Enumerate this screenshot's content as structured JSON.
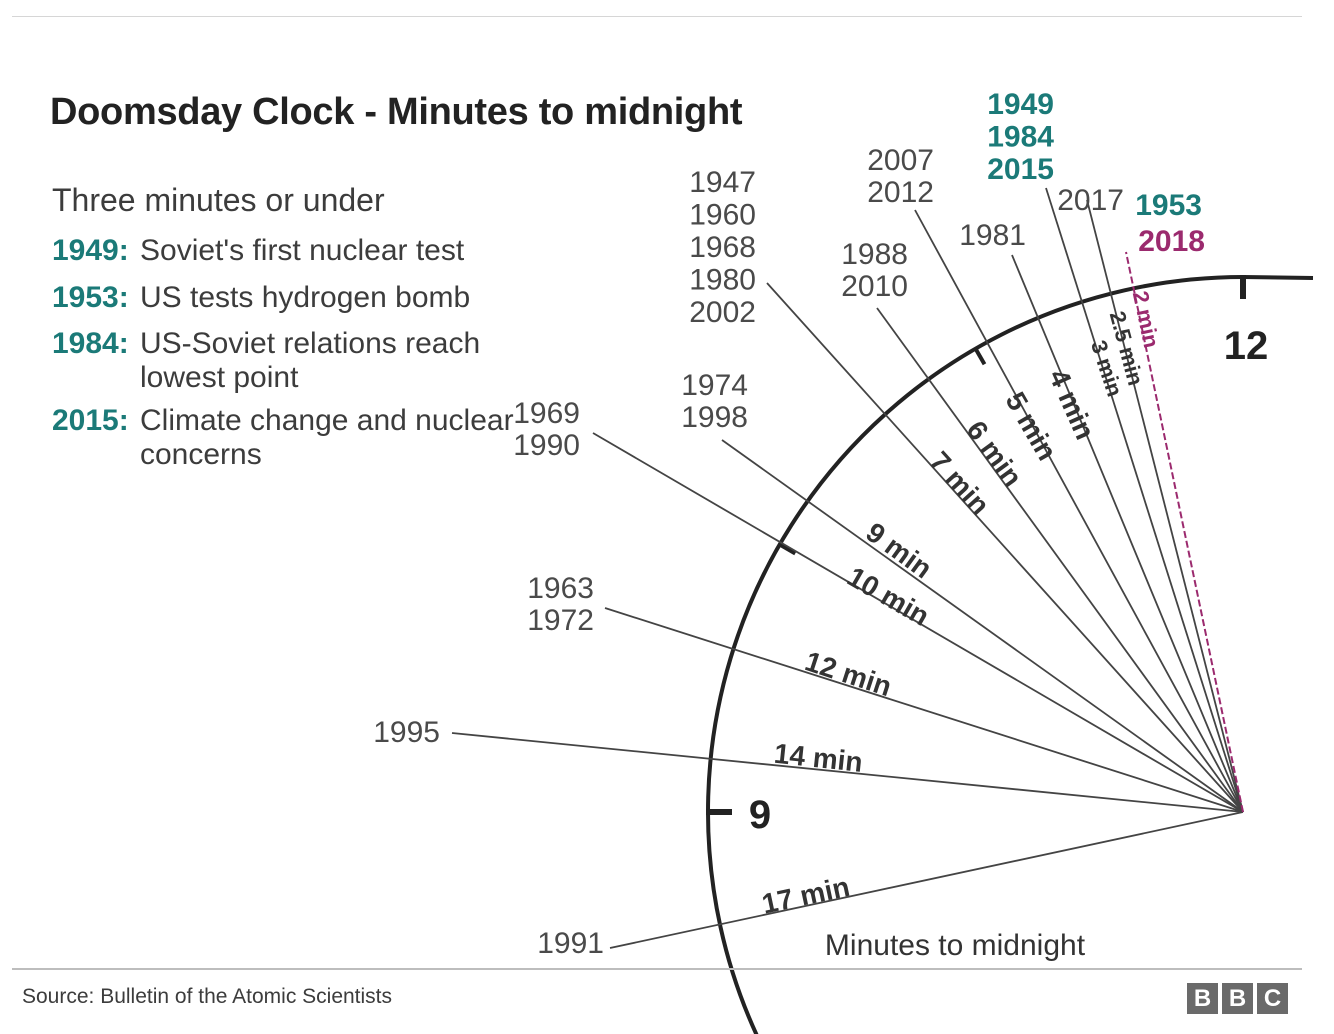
{
  "title": "Doomsday Clock - Minutes to midnight",
  "legend": {
    "heading": "Three minutes or under",
    "items": [
      {
        "year": "1949:",
        "text": "Soviet's first nuclear test"
      },
      {
        "year": "1953:",
        "text": "US tests hydrogen bomb"
      },
      {
        "year": "1984:",
        "text": "US-Soviet relations reach lowest point"
      },
      {
        "year": "2015:",
        "text": "Climate change and nuclear concerns"
      }
    ]
  },
  "source": "Source: Bulletin of the Atomic Scientists",
  "logo": {
    "letters": [
      "B",
      "B",
      "C"
    ]
  },
  "colors": {
    "teal": "#1b7a78",
    "magenta": "#9b2a6e",
    "grey_text": "#4a4a4a",
    "line": "#444444"
  },
  "chart_data": {
    "type": "radial-clock",
    "xlabel": "Minutes to midnight",
    "clock_labels": [
      "12",
      "9"
    ],
    "hands": [
      {
        "minutes": 17,
        "label": "17 min",
        "years": [
          "1991"
        ],
        "highlight": "none"
      },
      {
        "minutes": 14,
        "label": "14 min",
        "years": [
          "1995"
        ],
        "highlight": "none"
      },
      {
        "minutes": 12,
        "label": "12 min",
        "years": [
          "1963",
          "1972"
        ],
        "highlight": "none"
      },
      {
        "minutes": 10,
        "label": "10 min",
        "years": [
          "1969",
          "1990"
        ],
        "highlight": "none"
      },
      {
        "minutes": 9,
        "label": "9 min",
        "years": [
          "1974",
          "1998"
        ],
        "highlight": "none"
      },
      {
        "minutes": 7,
        "label": "7 min",
        "years": [
          "1947",
          "1960",
          "1968",
          "1980",
          "2002"
        ],
        "highlight": "none"
      },
      {
        "minutes": 6,
        "label": "6 min",
        "years": [
          "1988",
          "2010"
        ],
        "highlight": "none"
      },
      {
        "minutes": 5,
        "label": "5 min",
        "years": [
          "2007",
          "2012"
        ],
        "highlight": "none"
      },
      {
        "minutes": 4,
        "label": "4 min",
        "years": [
          "1981"
        ],
        "highlight": "none"
      },
      {
        "minutes": 3,
        "label": "3 min",
        "years": [
          "1949",
          "1984",
          "2015"
        ],
        "highlight": "teal"
      },
      {
        "minutes": 2.5,
        "label": "2.5 min",
        "years": [
          "2017"
        ],
        "highlight": "none"
      },
      {
        "minutes": 2,
        "label": "2 min",
        "years": [
          "1953"
        ],
        "highlight": "teal"
      },
      {
        "minutes": 2,
        "label": "2 min",
        "years": [
          "2018"
        ],
        "highlight": "magenta"
      }
    ]
  }
}
